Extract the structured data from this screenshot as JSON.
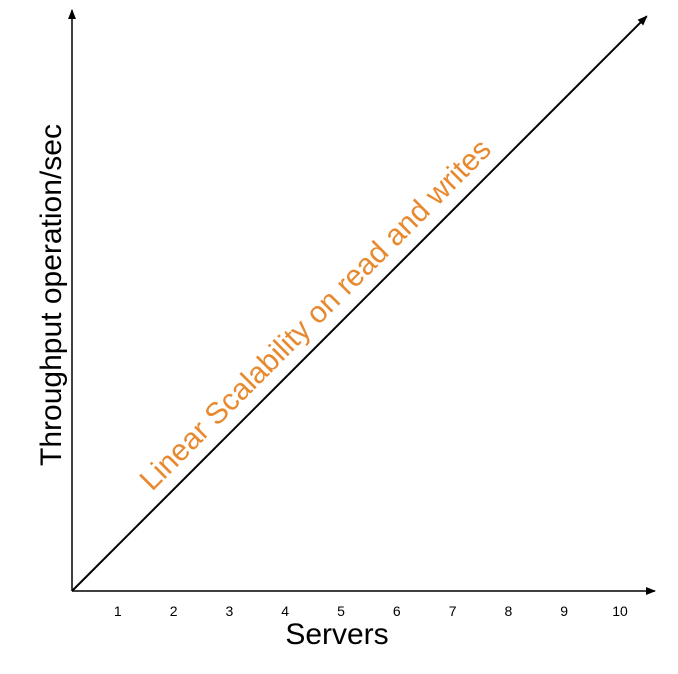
{
  "chart_data": {
    "type": "line",
    "xlabel": "Servers",
    "ylabel": "Throughput operation/sec",
    "x_ticks": [
      "1",
      "2",
      "3",
      "4",
      "5",
      "6",
      "7",
      "8",
      "9",
      "10"
    ],
    "xlim": [
      0,
      10.3
    ],
    "ylim": [
      0,
      10.3
    ],
    "grid": false,
    "legend": "none",
    "series": [
      {
        "x": [
          0,
          10.3
        ],
        "y": [
          0,
          10.3
        ],
        "color": "#000000"
      }
    ],
    "annotations": [
      {
        "text": "Linear Scalability on read and writes",
        "color": "#E8892F"
      }
    ]
  }
}
